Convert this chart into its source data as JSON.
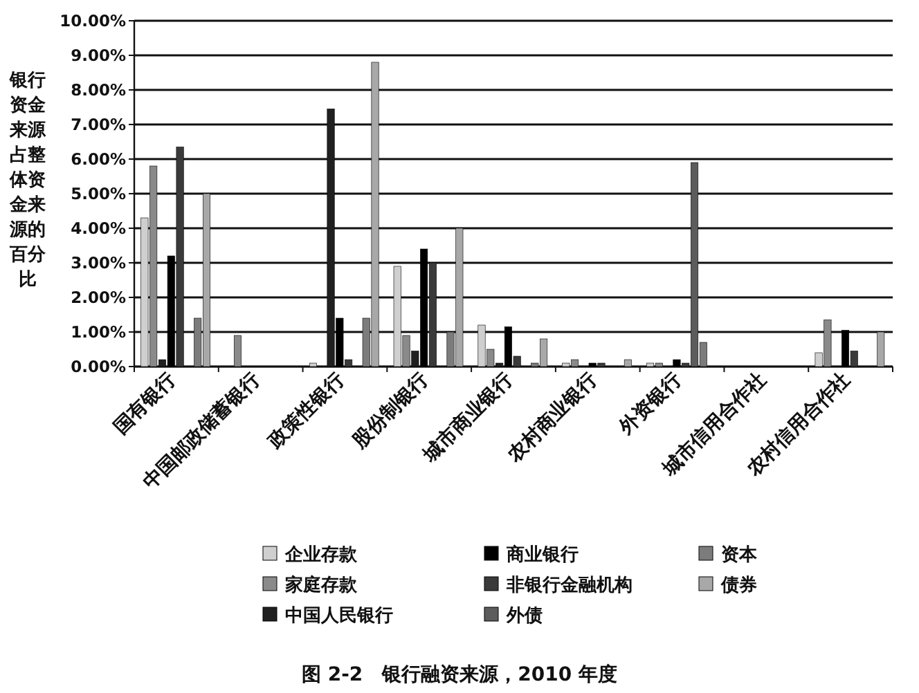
{
  "chart_data": {
    "type": "bar",
    "title": "图 2-2　银行融资来源，2010 年度",
    "ylabel": "银行资金来源占整体资金来源的百分比",
    "categories": [
      "国有银行",
      "中国邮政储蓄银行",
      "政策性银行",
      "股份制银行",
      "城市商业银行",
      "农村商业银行",
      "外资银行",
      "城市信用合作社",
      "农村信用合作社"
    ],
    "series": [
      {
        "name": "企业存款",
        "color": "#cfcfcf",
        "values": [
          4.3,
          0,
          0.1,
          2.9,
          1.2,
          0.1,
          0.1,
          0,
          0.4
        ]
      },
      {
        "name": "家庭存款",
        "color": "#8a8a8a",
        "values": [
          5.8,
          0.9,
          0,
          0.9,
          0.5,
          0.2,
          0.1,
          0,
          1.35
        ]
      },
      {
        "name": "中国人民银行",
        "color": "#202020",
        "values": [
          0.2,
          0,
          7.45,
          0.45,
          0.1,
          0,
          0,
          0,
          0
        ]
      },
      {
        "name": "商业银行",
        "color": "#000000",
        "values": [
          3.2,
          0,
          1.4,
          3.4,
          1.15,
          0.1,
          0.2,
          0,
          1.05
        ]
      },
      {
        "name": "非银行金融机构",
        "color": "#3a3a3a",
        "values": [
          6.35,
          0,
          0.2,
          3.0,
          0.3,
          0.1,
          0.1,
          0,
          0.45
        ]
      },
      {
        "name": "外债",
        "color": "#5c5c5c",
        "values": [
          0,
          0,
          0,
          0,
          0,
          0,
          5.9,
          0,
          0
        ]
      },
      {
        "name": "资本",
        "color": "#7c7c7c",
        "values": [
          1.4,
          0,
          1.4,
          1.0,
          0.1,
          0,
          0.7,
          0,
          0
        ]
      },
      {
        "name": "债券",
        "color": "#a8a8a8",
        "values": [
          5.0,
          0,
          8.8,
          4.0,
          0.8,
          0.2,
          0,
          0,
          1.0
        ]
      }
    ],
    "ylim": [
      0,
      10
    ],
    "yticks": [
      {
        "value": 0,
        "label": "0.00%"
      },
      {
        "value": 1,
        "label": "1.00%"
      },
      {
        "value": 2,
        "label": "2.00%"
      },
      {
        "value": 3,
        "label": "3.00%"
      },
      {
        "value": 4,
        "label": "4.00%"
      },
      {
        "value": 5,
        "label": "5.00%"
      },
      {
        "value": 6,
        "label": "6.00%"
      },
      {
        "value": 7,
        "label": "7.00%"
      },
      {
        "value": 8,
        "label": "8.00%"
      },
      {
        "value": 9,
        "label": "9.00%"
      },
      {
        "value": 10,
        "label": "10.00%"
      }
    ],
    "grid": "y",
    "legend": "bottom"
  }
}
